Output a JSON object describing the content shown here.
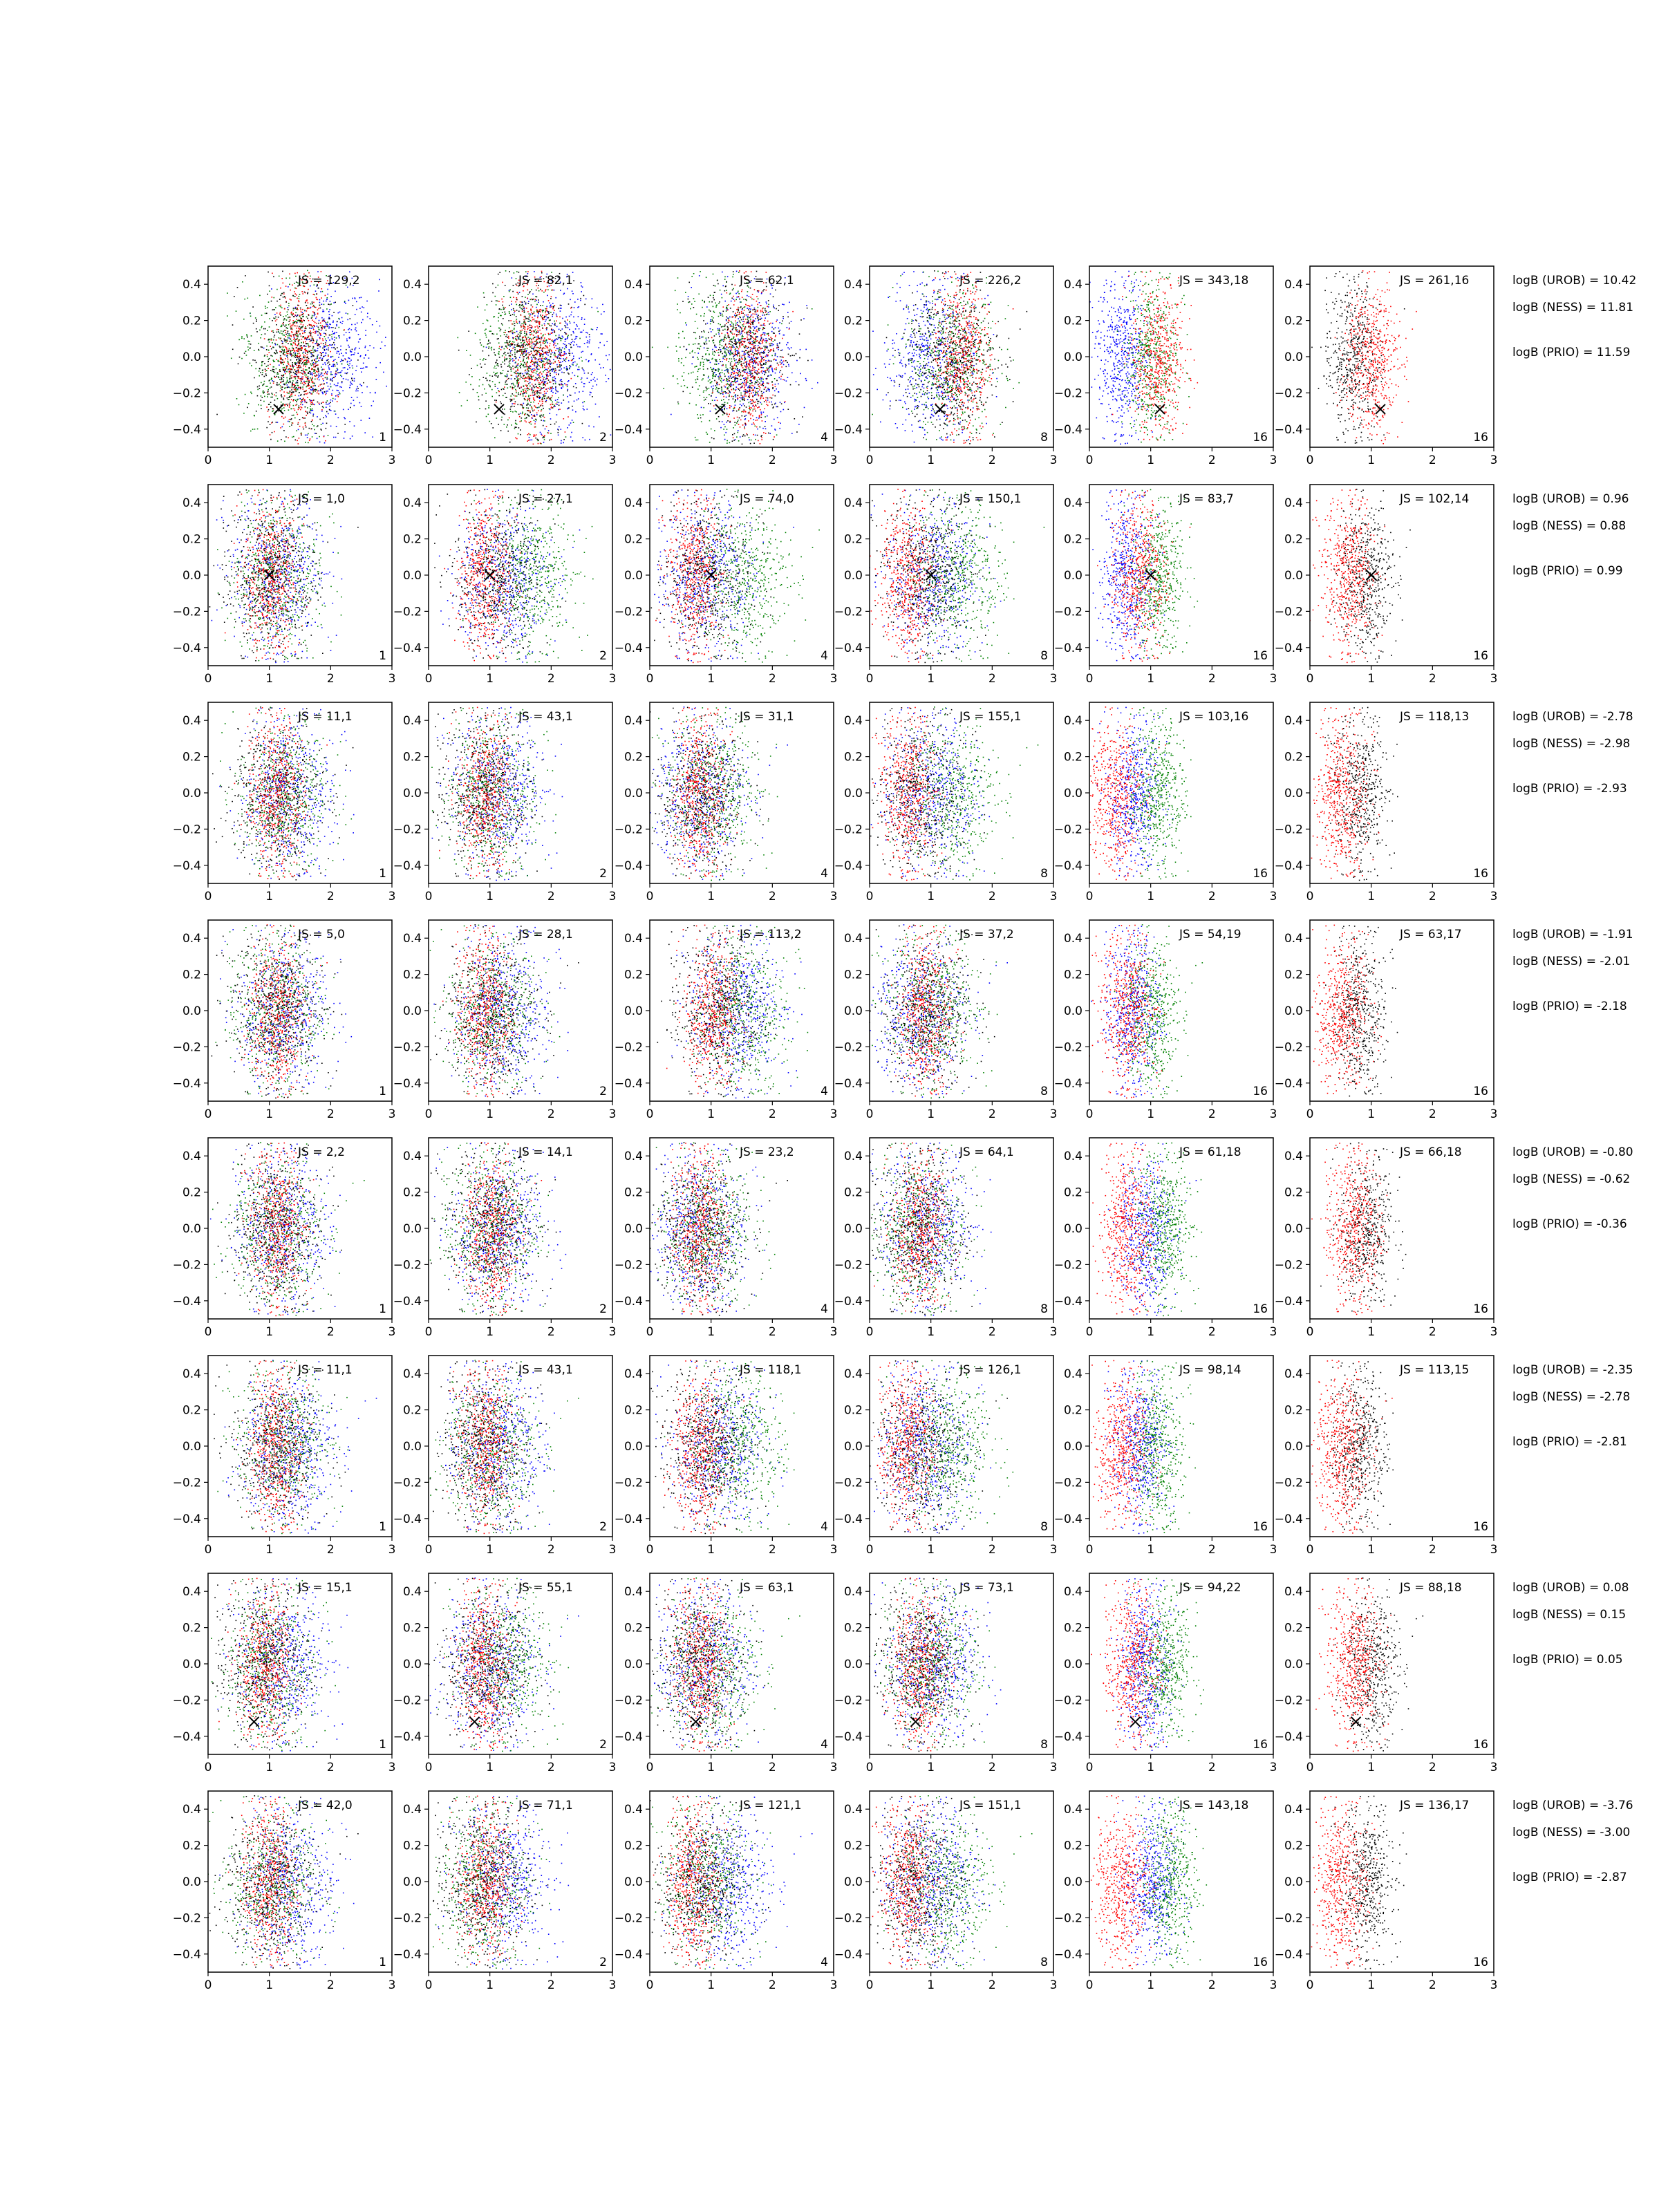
{
  "figure": {
    "x_ticks": [
      "0",
      "1",
      "2",
      "3"
    ],
    "y_ticks": [
      "0.4",
      "0.2",
      "0.0",
      "−0.2",
      "−0.4"
    ],
    "series_colors": {
      "blue": "#0000ff",
      "green": "#008000",
      "red": "#ff0000",
      "black": "#000000"
    },
    "columns": [
      {
        "corner_label": "1",
        "colors": [
          "blue",
          "green",
          "red",
          "black"
        ]
      },
      {
        "corner_label": "2",
        "colors": [
          "blue",
          "green",
          "red",
          "black"
        ]
      },
      {
        "corner_label": "4",
        "colors": [
          "blue",
          "green",
          "red",
          "black"
        ]
      },
      {
        "corner_label": "8",
        "colors": [
          "blue",
          "green",
          "red",
          "black"
        ]
      },
      {
        "corner_label": "16",
        "colors": [
          "blue",
          "green",
          "red"
        ]
      },
      {
        "corner_label": "16",
        "colors": [
          "black",
          "red"
        ]
      }
    ],
    "rows": [
      {
        "js_labels": [
          "JS = 129,2",
          "JS = 82,1",
          "JS = 62,1",
          "JS = 226,2",
          "JS = 343,18",
          "JS = 261,16"
        ],
        "logB": [
          "logB (UROB) = 10.42",
          "logB (NESS) = 11.81",
          "logB (PRIO) = 11.59"
        ],
        "marker": {
          "x": 1.15,
          "y": -0.29
        },
        "centers": [
          {
            "blue": 2.0,
            "green": 1.3,
            "red": 1.5,
            "black": 1.4
          },
          {
            "blue": 2.1,
            "green": 1.5,
            "red": 1.7,
            "black": 1.6
          },
          {
            "blue": 1.6,
            "green": 1.2,
            "red": 1.6,
            "black": 1.5
          },
          {
            "blue": 1.0,
            "green": 1.3,
            "red": 1.5,
            "black": 1.3
          },
          {
            "blue": 0.5,
            "green": 1.0,
            "red": 1.1
          },
          {
            "black": 0.7,
            "red": 1.0
          }
        ]
      },
      {
        "js_labels": [
          "JS = 1,0",
          "JS = 27,1",
          "JS = 74,0",
          "JS = 150,1",
          "JS = 83,7",
          "JS = 102,14"
        ],
        "logB": [
          "logB (UROB) = 0.96",
          "logB (NESS) = 0.88",
          "logB (PRIO) = 0.99"
        ],
        "marker": {
          "x": 1.0,
          "y": 0.0
        },
        "centers": [
          {
            "blue": 1.1,
            "green": 1.1,
            "red": 1.0,
            "black": 1.0
          },
          {
            "blue": 1.2,
            "green": 1.6,
            "red": 0.9,
            "black": 1.1
          },
          {
            "blue": 0.9,
            "green": 1.5,
            "red": 0.7,
            "black": 0.9
          },
          {
            "blue": 1.0,
            "green": 1.4,
            "red": 0.6,
            "black": 0.9
          },
          {
            "blue": 0.6,
            "green": 1.1,
            "red": 0.8
          },
          {
            "black": 0.9,
            "red": 0.6
          }
        ]
      },
      {
        "js_labels": [
          "JS = 11,1",
          "JS = 43,1",
          "JS = 31,1",
          "JS = 155,1",
          "JS = 103,16",
          "JS = 118,13"
        ],
        "logB": [
          "logB (UROB) = -2.78",
          "logB (NESS) = -2.98",
          "logB (PRIO) = -2.93"
        ],
        "marker": null,
        "centers": [
          {
            "blue": 1.3,
            "green": 1.2,
            "red": 1.1,
            "black": 1.1
          },
          {
            "blue": 1.1,
            "green": 1.0,
            "red": 0.9,
            "black": 0.9
          },
          {
            "blue": 0.8,
            "green": 1.0,
            "red": 0.8,
            "black": 0.8
          },
          {
            "blue": 1.0,
            "green": 1.3,
            "red": 0.6,
            "black": 0.8
          },
          {
            "blue": 0.7,
            "green": 1.1,
            "red": 0.4
          },
          {
            "black": 0.8,
            "red": 0.5
          }
        ]
      },
      {
        "js_labels": [
          "JS = 5,0",
          "JS = 28,1",
          "JS = 113,2",
          "JS = 37,2",
          "JS = 54,19",
          "JS = 63,17"
        ],
        "logB": [
          "logB (UROB) = -1.91",
          "logB (NESS) = -2.01",
          "logB (PRIO) = -2.18"
        ],
        "marker": null,
        "centers": [
          {
            "blue": 1.2,
            "green": 1.1,
            "red": 1.1,
            "black": 1.1
          },
          {
            "blue": 1.2,
            "green": 1.0,
            "red": 0.9,
            "black": 1.0
          },
          {
            "blue": 1.4,
            "green": 1.5,
            "red": 1.0,
            "black": 1.1
          },
          {
            "blue": 0.8,
            "green": 1.0,
            "red": 0.9,
            "black": 0.9
          },
          {
            "blue": 0.7,
            "green": 1.0,
            "red": 0.6
          },
          {
            "black": 0.8,
            "red": 0.5
          }
        ]
      },
      {
        "js_labels": [
          "JS = 2,2",
          "JS = 14,1",
          "JS = 23,2",
          "JS = 64,1",
          "JS = 61,18",
          "JS = 66,18"
        ],
        "logB": [
          "logB (UROB) = -0.80",
          "logB (NESS) = -0.62",
          "logB (PRIO) = -0.36"
        ],
        "marker": null,
        "centers": [
          {
            "blue": 1.2,
            "green": 1.1,
            "red": 1.1,
            "black": 1.1
          },
          {
            "blue": 1.1,
            "green": 1.0,
            "red": 1.0,
            "black": 1.0
          },
          {
            "blue": 0.8,
            "green": 0.9,
            "red": 0.8,
            "black": 0.8
          },
          {
            "blue": 0.9,
            "green": 0.8,
            "red": 0.8,
            "black": 0.8
          },
          {
            "blue": 0.9,
            "green": 1.2,
            "red": 0.6
          },
          {
            "black": 0.9,
            "red": 0.7
          }
        ]
      },
      {
        "js_labels": [
          "JS = 11,1",
          "JS = 43,1",
          "JS = 118,1",
          "JS = 126,1",
          "JS = 98,14",
          "JS = 113,15"
        ],
        "logB": [
          "logB (UROB) = -2.35",
          "logB (NESS) = -2.78",
          "logB (PRIO) = -2.81"
        ],
        "marker": null,
        "centers": [
          {
            "blue": 1.3,
            "green": 1.2,
            "red": 1.1,
            "black": 1.1
          },
          {
            "blue": 1.1,
            "green": 1.0,
            "red": 0.9,
            "black": 0.9
          },
          {
            "blue": 1.1,
            "green": 1.4,
            "red": 0.8,
            "black": 0.9
          },
          {
            "blue": 0.9,
            "green": 1.2,
            "red": 0.6,
            "black": 0.8
          },
          {
            "blue": 0.8,
            "green": 1.1,
            "red": 0.5
          },
          {
            "black": 0.8,
            "red": 0.5
          }
        ]
      },
      {
        "js_labels": [
          "JS = 15,1",
          "JS = 55,1",
          "JS = 63,1",
          "JS = 73,1",
          "JS = 94,22",
          "JS = 88,18"
        ],
        "logB": [
          "logB (UROB) = 0.08",
          "logB (NESS) = 0.15",
          "logB (PRIO) = 0.05"
        ],
        "marker": {
          "x": 0.75,
          "y": -0.32
        },
        "centers": [
          {
            "blue": 1.2,
            "green": 1.0,
            "red": 0.9,
            "black": 0.9
          },
          {
            "blue": 1.0,
            "green": 1.2,
            "red": 0.9,
            "black": 0.9
          },
          {
            "blue": 0.9,
            "green": 1.0,
            "red": 0.8,
            "black": 0.8
          },
          {
            "blue": 1.0,
            "green": 1.0,
            "red": 0.8,
            "black": 0.8
          },
          {
            "blue": 0.9,
            "green": 1.2,
            "red": 0.7
          },
          {
            "black": 1.0,
            "red": 0.7
          }
        ]
      },
      {
        "js_labels": [
          "JS = 42,0",
          "JS = 71,1",
          "JS = 121,1",
          "JS = 151,1",
          "JS = 143,18",
          "JS = 136,17"
        ],
        "logB": [
          "logB (UROB) = -3.76",
          "logB (NESS) = -3.00",
          "logB (PRIO) = -2.87"
        ],
        "marker": null,
        "centers": [
          {
            "blue": 1.3,
            "green": 1.0,
            "red": 1.0,
            "black": 1.0
          },
          {
            "blue": 1.2,
            "green": 0.9,
            "red": 0.9,
            "black": 0.9
          },
          {
            "blue": 1.2,
            "green": 0.9,
            "red": 0.7,
            "black": 0.8
          },
          {
            "blue": 1.0,
            "green": 1.2,
            "red": 0.6,
            "black": 0.8
          },
          {
            "blue": 1.0,
            "green": 1.3,
            "red": 0.5
          },
          {
            "black": 0.9,
            "red": 0.5
          }
        ]
      }
    ]
  },
  "chart_data": {
    "type": "scatter",
    "layout_description": "8 rows x 6 columns grid of scatter panels",
    "xlim": [
      0,
      3
    ],
    "ylim": [
      -0.5,
      0.5
    ],
    "x_ticks": [
      0,
      1,
      2,
      3
    ],
    "y_ticks": [
      -0.4,
      -0.2,
      0.0,
      0.2,
      0.4
    ],
    "grid": false,
    "legend": "none",
    "panel_series_colors": [
      "blue",
      "green",
      "red",
      "black"
    ],
    "column_corner_labels": [
      "1",
      "2",
      "4",
      "8",
      "16",
      "16"
    ]
  }
}
